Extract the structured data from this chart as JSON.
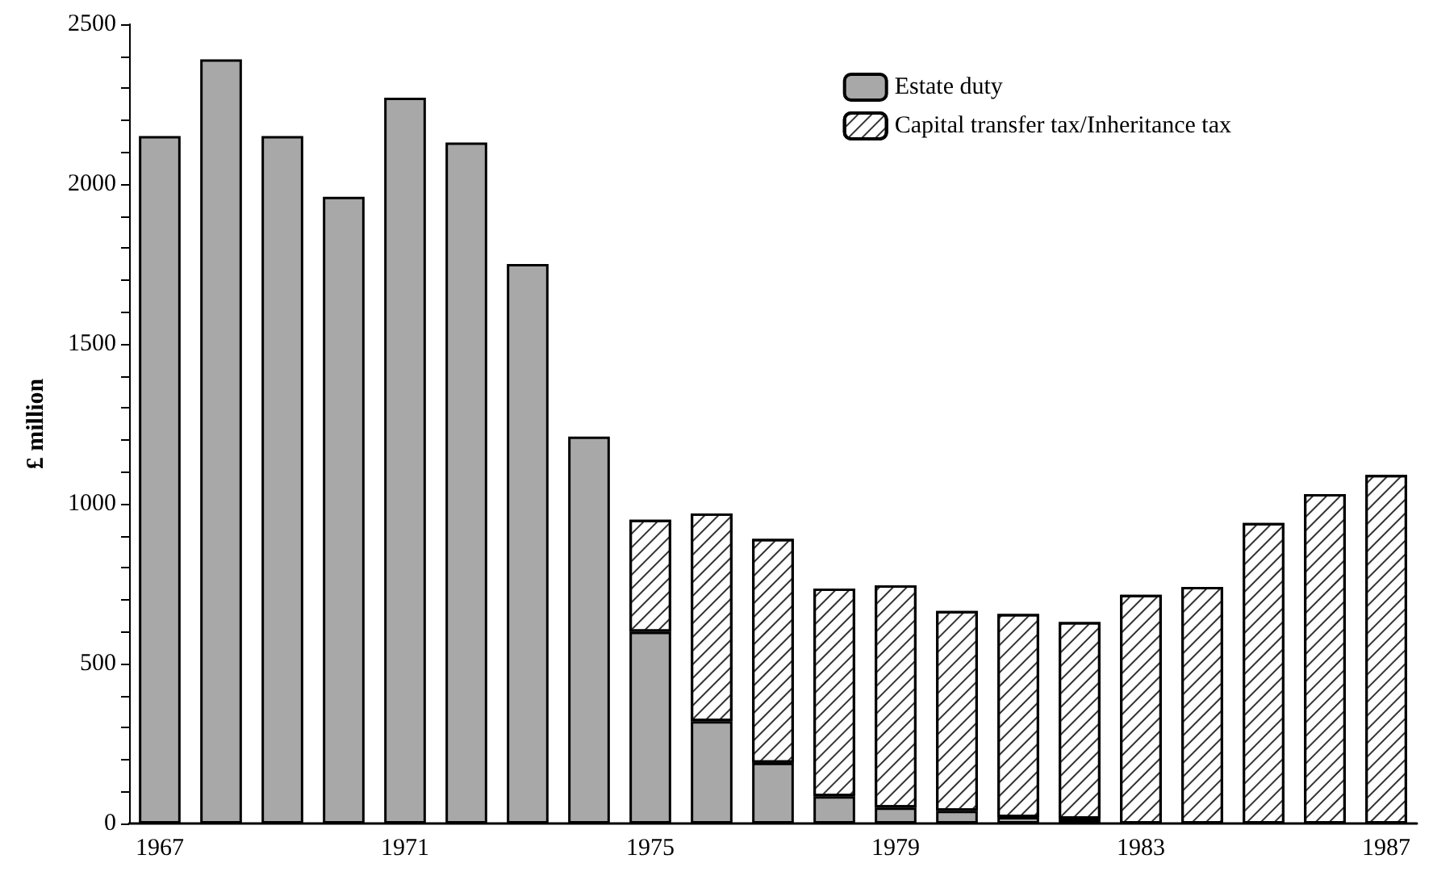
{
  "chart_data": {
    "type": "bar",
    "stacked": true,
    "ylabel": "£ million",
    "categories": [
      "1967",
      null,
      null,
      null,
      "1971",
      null,
      null,
      null,
      "1975",
      null,
      null,
      null,
      "1979",
      null,
      null,
      null,
      "1983",
      null,
      null,
      null,
      "1987"
    ],
    "series": [
      {
        "name": "Estate duty",
        "color": "#a8a8a8",
        "values": [
          2150,
          2390,
          2150,
          1960,
          2270,
          2130,
          1750,
          1210,
          600,
          320,
          190,
          85,
          50,
          40,
          20,
          15,
          null,
          null,
          null,
          null,
          null
        ]
      },
      {
        "name": "Capital transfer tax/Inheritance tax",
        "color": "#ffffff",
        "values": [
          null,
          null,
          null,
          null,
          null,
          null,
          null,
          null,
          350,
          650,
          700,
          650,
          695,
          625,
          635,
          615,
          715,
          740,
          940,
          1030,
          1090
        ]
      }
    ],
    "ylim": [
      0,
      2500
    ],
    "yticks": [
      0,
      {
        "value": 100,
        "label": null
      },
      {
        "value": 200,
        "label": null
      },
      {
        "value": 300,
        "label": null
      },
      {
        "value": 400,
        "label": null
      },
      500,
      {
        "value": 600,
        "label": null
      },
      {
        "value": 700,
        "label": null
      },
      {
        "value": 800,
        "label": null
      },
      {
        "value": 900,
        "label": null
      },
      1000,
      {
        "value": 1100,
        "label": null
      },
      {
        "value": 1200,
        "label": null
      },
      {
        "value": 1300,
        "label": null
      },
      {
        "value": 1400,
        "label": null
      },
      1500,
      {
        "value": 1600,
        "label": null
      },
      {
        "value": 1700,
        "label": null
      },
      {
        "value": 1800,
        "label": null
      },
      {
        "value": 1900,
        "label": null
      },
      2000,
      {
        "value": 2100,
        "label": null
      },
      {
        "value": 2200,
        "label": null
      },
      {
        "value": 2300,
        "label": null
      },
      {
        "value": 2400,
        "label": null
      },
      2500
    ],
    "grid": false,
    "legend": "top right"
  }
}
